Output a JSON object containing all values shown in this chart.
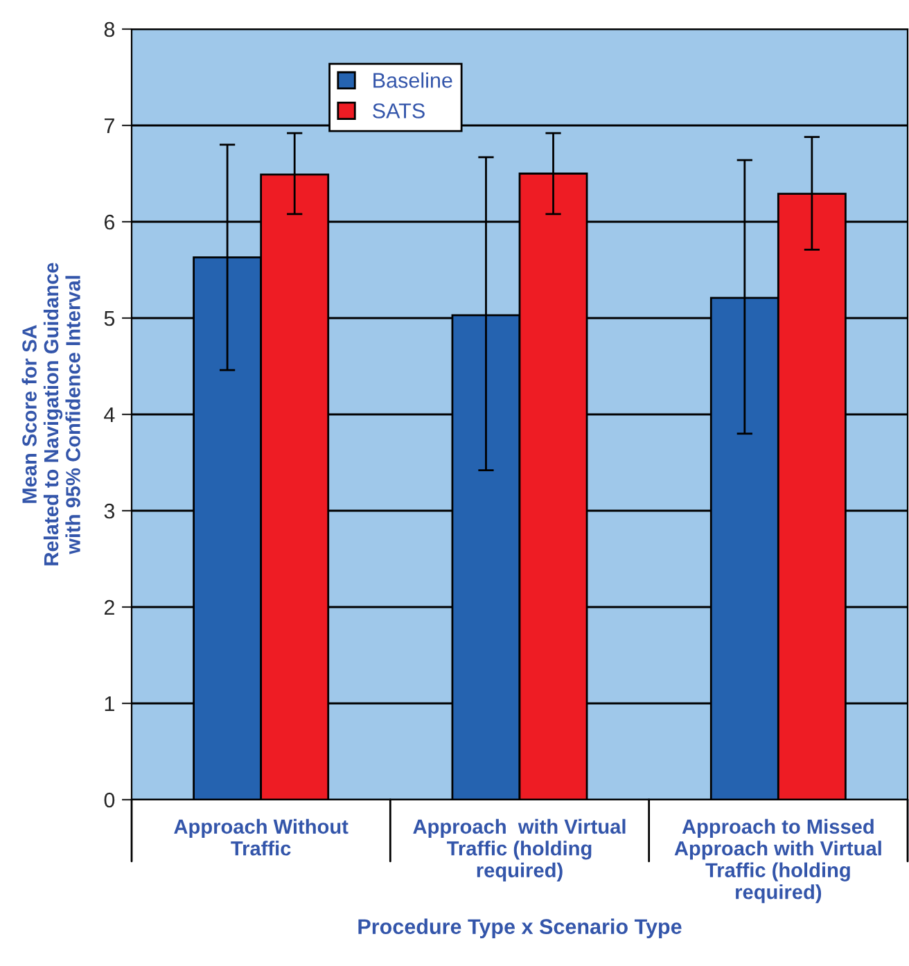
{
  "chart_data": {
    "type": "bar",
    "xlabel": "Procedure Type x Scenario Type",
    "ylabel": "Mean Score for SA\nRelated to Navigation Guidance\nwith 95% Confidence Interval",
    "categories": [
      "Approach Without\nTraffic",
      "Approach  with Virtual\nTraffic (holding\nrequired)",
      "Approach to Missed\nApproach with Virtual\nTraffic (holding\nrequired)"
    ],
    "series": [
      {
        "name": "Baseline",
        "color": "#2563b0",
        "values": [
          5.63,
          5.03,
          5.21
        ],
        "errors": [
          [
            4.46,
            6.8
          ],
          [
            3.42,
            6.67
          ],
          [
            3.8,
            6.64
          ]
        ]
      },
      {
        "name": "SATS",
        "color": "#ee1c24",
        "values": [
          6.49,
          6.5,
          6.29
        ],
        "errors": [
          [
            6.08,
            6.92
          ],
          [
            6.08,
            6.92
          ],
          [
            5.71,
            6.88
          ]
        ]
      }
    ],
    "ylim": [
      0,
      8
    ],
    "yticks": [
      0,
      1,
      2,
      3,
      4,
      5,
      6,
      7,
      8
    ],
    "grid": "y",
    "legend": "top left"
  }
}
